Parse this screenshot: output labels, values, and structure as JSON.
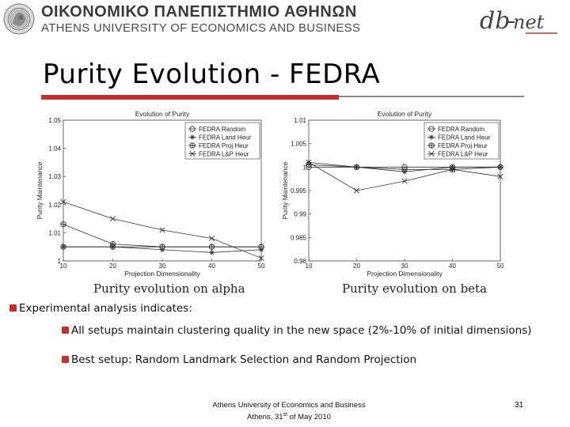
{
  "header": {
    "university_greek": "ΟΙΚΟΝΟΜΙΚΟ ΠΑΝΕΠΙΣΤΗΜΙΟ ΑΘΗΝΩΝ",
    "university_english": "ATHENS UNIVERSITY OF ECONOMICS AND BUSINESS",
    "logo_right": "db-net"
  },
  "slide": {
    "title": "Purity Evolution - FEDRA",
    "accent_color": "#c0332b"
  },
  "chart_data": [
    {
      "type": "line",
      "title": "Evolution of Purity",
      "xlabel": "Projection Dimensionality",
      "ylabel": "Purity Maintenance",
      "x": [
        10,
        20,
        30,
        40,
        50
      ],
      "xlim": [
        10,
        50
      ],
      "ylim": [
        1,
        1.05
      ],
      "yticks": [
        "1",
        "1.01",
        "1.02",
        "1.03",
        "1.04",
        "1.05"
      ],
      "xticks": [
        "10",
        "20",
        "30",
        "40",
        "50"
      ],
      "legend_position": "top-right",
      "series": [
        {
          "name": "FEDRA Random",
          "marker": "circle",
          "values": [
            1.005,
            1.005,
            1.005,
            1.005,
            1.005
          ]
        },
        {
          "name": "FEDRA Land Heur",
          "marker": "star",
          "values": [
            1.005,
            1.005,
            1.004,
            1.003,
            1.004
          ]
        },
        {
          "name": "FEDRA Proj Heur",
          "marker": "circle-plus",
          "values": [
            1.013,
            1.006,
            1.005,
            1.005,
            1.005
          ]
        },
        {
          "name": "FEDRA L&P Heur",
          "marker": "x",
          "values": [
            1.021,
            1.015,
            1.011,
            1.008,
            1.001
          ]
        }
      ],
      "caption": "Purity evolution on alpha"
    },
    {
      "type": "line",
      "title": "Evolution of Purity",
      "xlabel": "Projection Dimensionality",
      "ylabel": "Purity Maintenance",
      "x": [
        10,
        20,
        30,
        40,
        50
      ],
      "xlim": [
        10,
        50
      ],
      "ylim": [
        0.98,
        1.01
      ],
      "yticks": [
        "0.98",
        "0.985",
        "0.99",
        "0.995",
        "1",
        "1.005",
        "1.01"
      ],
      "xticks": [
        "10",
        "20",
        "30",
        "40",
        "50"
      ],
      "legend_position": "top-right",
      "series": [
        {
          "name": "FEDRA Random",
          "marker": "circle",
          "values": [
            1.0,
            1.0,
            1.0,
            1.0,
            1.0
          ]
        },
        {
          "name": "FEDRA Land Heur",
          "marker": "star",
          "values": [
            1.001,
            1.0,
            0.999,
            1.0,
            1.0
          ]
        },
        {
          "name": "FEDRA Proj Heur",
          "marker": "circle-plus",
          "values": [
            1.0005,
            1.0,
            0.9995,
            0.9995,
            1.0
          ]
        },
        {
          "name": "FEDRA L&P Heur",
          "marker": "x",
          "values": [
            1.001,
            0.995,
            0.997,
            0.9995,
            0.998
          ]
        }
      ],
      "caption": "Purity evolution on beta"
    }
  ],
  "bullets": {
    "b1": "Experimental analysis indicates:",
    "b2": "All setups maintain clustering quality in the new space (2%-10% of initial dimensions)",
    "b3": "Best setup: Random Landmark Selection and Random Projection"
  },
  "footer": {
    "line1": "Athens University of Economics and Business",
    "line2_pre": "Athens, 31",
    "line2_sup": "st",
    "line2_post": " of May 2010",
    "page_number": "31"
  }
}
